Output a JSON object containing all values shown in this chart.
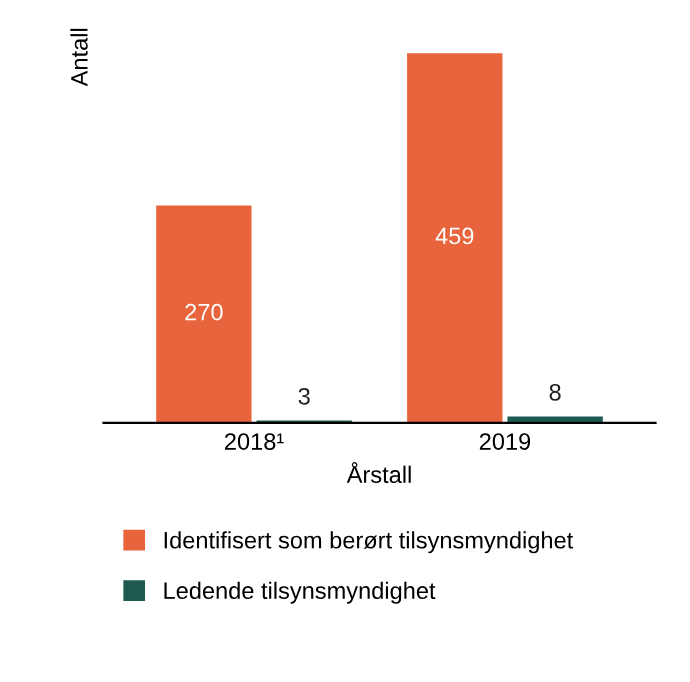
{
  "chart_data": {
    "type": "bar",
    "xlabel": "Årstall",
    "ylabel": "Antall",
    "categories": [
      "2018¹",
      "2019"
    ],
    "series": [
      {
        "name": "Identifisert som berørt tilsynsmyndighet",
        "color": "#e8643c",
        "values": [
          270,
          459
        ]
      },
      {
        "name": "Ledende tilsynsmyndighet",
        "color": "#1e5a50",
        "values": [
          3,
          8
        ]
      }
    ],
    "data_labels": true,
    "tick_labels": "x",
    "legend": "bottom",
    "grid": false
  }
}
